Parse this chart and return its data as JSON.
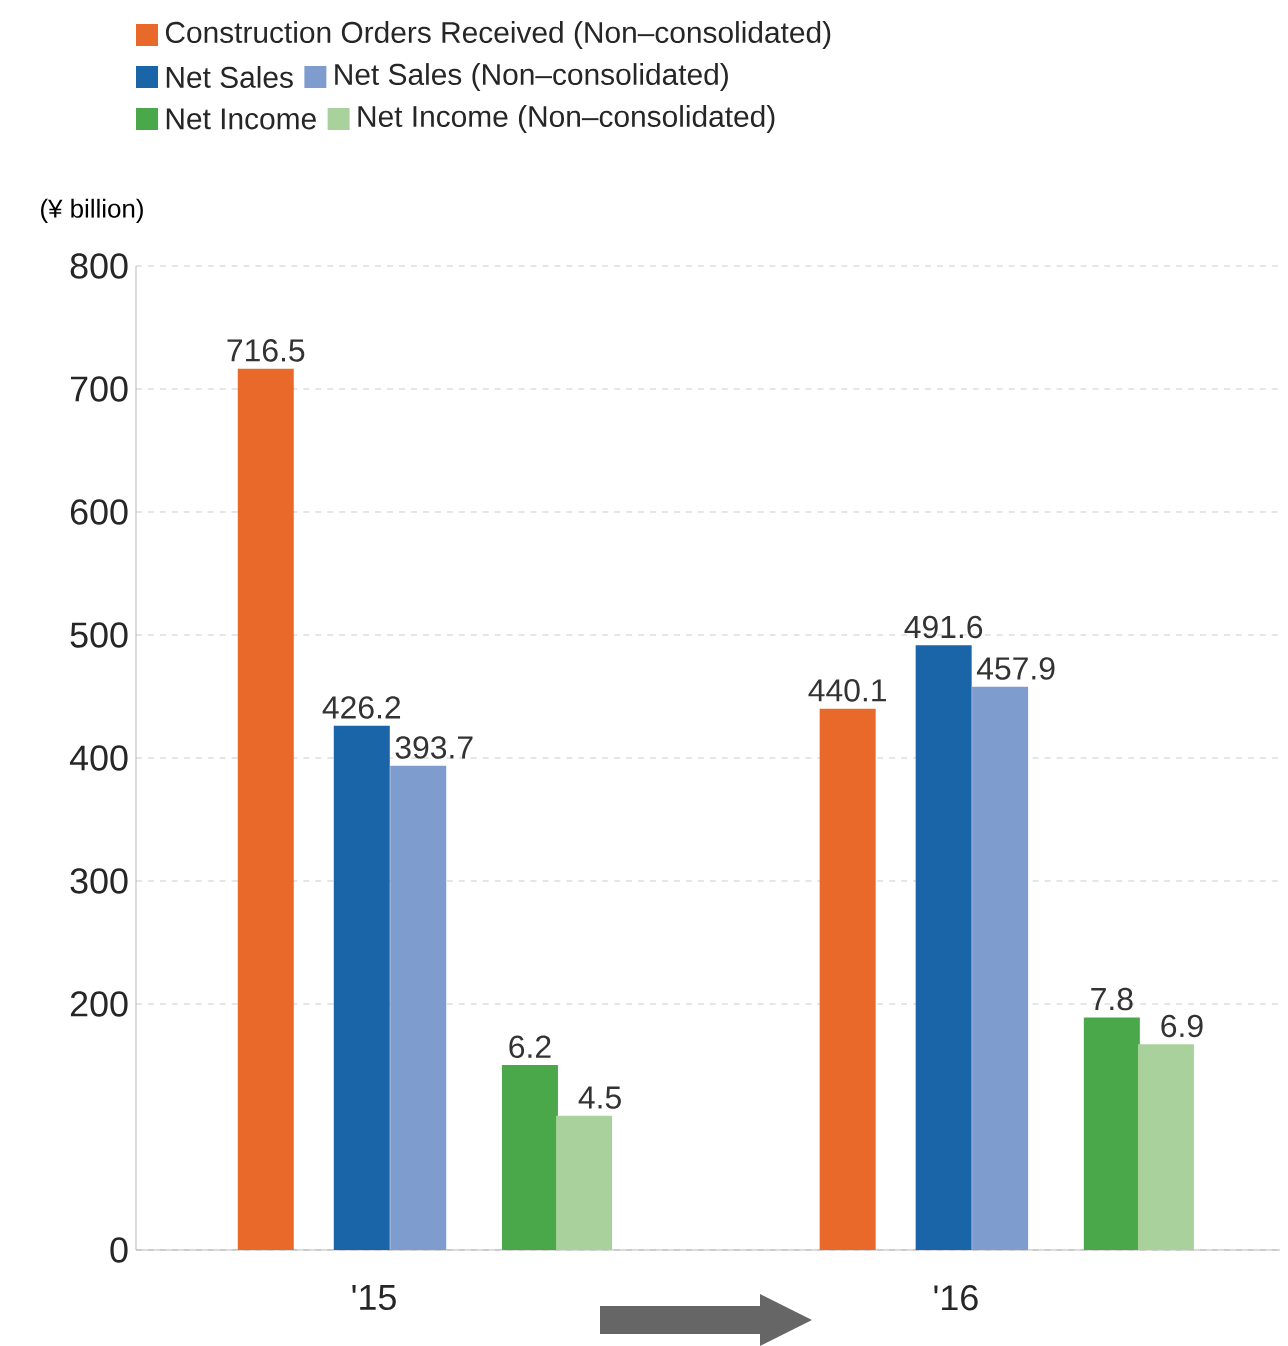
{
  "chart_data": {
    "type": "bar",
    "categories": [
      "'15",
      "'16"
    ],
    "ylabel": "(¥ billion)",
    "series": [
      {
        "name": "Construction Orders  Received (Non–consolidated)",
        "color": "#e8692a",
        "values": [
          716.5,
          440.1
        ]
      },
      {
        "name": "Net Sales",
        "color": "#1a64a8",
        "values": [
          426.2,
          491.6
        ]
      },
      {
        "name": "Net Sales (Non–consolidated)",
        "color": "#7f9ccf",
        "values": [
          393.7,
          457.9
        ]
      },
      {
        "name": "Net Income",
        "color": "#4aa84a",
        "values": [
          6.2,
          7.8
        ],
        "axis": "y2"
      },
      {
        "name": "Net Income (Non–consolidated)",
        "color": "#a9d19c",
        "values": [
          4.5,
          6.9
        ],
        "axis": "y2"
      }
    ],
    "ylim": [
      0,
      800
    ],
    "yticks": [
      0,
      200,
      300,
      400,
      500,
      600,
      700,
      800
    ],
    "y2lim": [
      0,
      33
    ],
    "grid": "y",
    "data_labels": true,
    "legend": "top left"
  }
}
